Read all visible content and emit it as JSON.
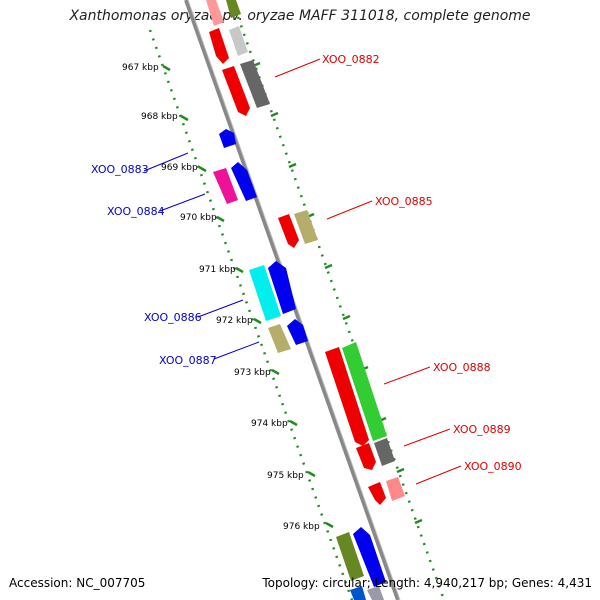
{
  "title": "Xanthomonas oryzae pv. oryzae MAFF 311018, complete genome",
  "footer": {
    "accession": "Accession: NC_007705",
    "info": "Topology: circular; Length: 4,940,217 bp; Genes: 4,431"
  },
  "colors": {
    "backbone": "#888888",
    "tick": "#228b22",
    "label_forward": "#0000cc",
    "label_reverse": "#dd0000"
  },
  "kbp_ticks": [
    "967 kbp",
    "968 kbp",
    "969 kbp",
    "970 kbp",
    "971 kbp",
    "972 kbp",
    "973 kbp",
    "974 kbp",
    "975 kbp",
    "976 kbp"
  ],
  "gene_labels": [
    {
      "text": "XOO_0882",
      "strand": "reverse"
    },
    {
      "text": "XOO_0883",
      "strand": "forward"
    },
    {
      "text": "XOO_0884",
      "strand": "forward"
    },
    {
      "text": "XOO_0885",
      "strand": "reverse"
    },
    {
      "text": "XOO_0886",
      "strand": "forward"
    },
    {
      "text": "XOO_0887",
      "strand": "forward"
    },
    {
      "text": "XOO_0888",
      "strand": "reverse"
    },
    {
      "text": "XOO_0889",
      "strand": "reverse"
    },
    {
      "text": "XOO_0890",
      "strand": "reverse"
    }
  ]
}
